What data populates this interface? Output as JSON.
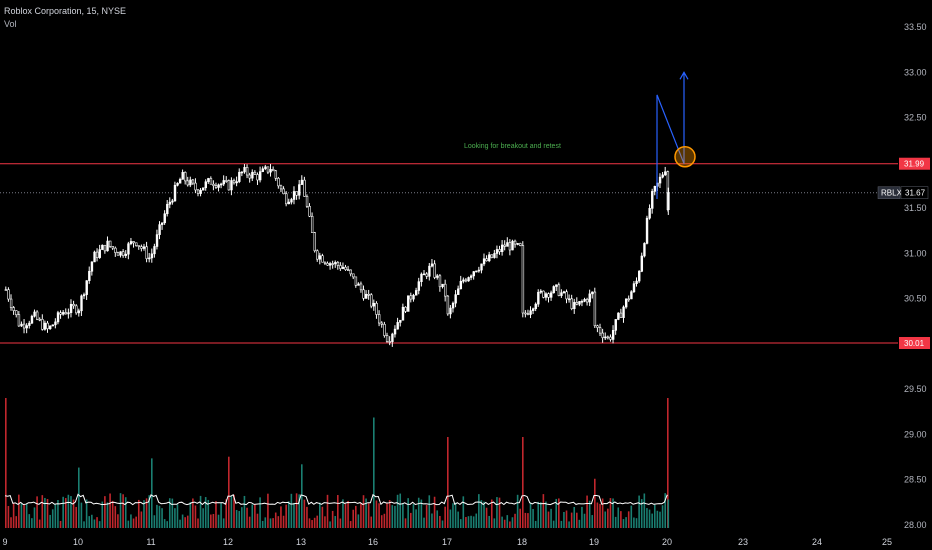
{
  "header": {
    "symbol_line": "Roblox Corporation, 15, NYSE",
    "volume_label": "Vol"
  },
  "colors": {
    "background": "#000000",
    "candle_up": "#ffffff",
    "candle_down": "#ffffff",
    "volume_up": "#1a7f72",
    "volume_down": "#c1272d",
    "volume_ma": "#ffffff",
    "level_line": "#f23645",
    "annotation": "#4caf50",
    "projection": "#2962ff",
    "circle": "#ff9800"
  },
  "annotations": {
    "note": "Looking for breakout and retest",
    "ticker_label": "RBLX",
    "last_price_label": "31.67"
  },
  "chart_data": {
    "type": "candlestick",
    "title": "Roblox Corporation, 15, NYSE",
    "y_ticks": [
      "33.50",
      "33.00",
      "32.50",
      "32.00",
      "31.50",
      "31.00",
      "30.50",
      "30.00",
      "29.50",
      "29.00",
      "28.50",
      "28.00"
    ],
    "x_ticks": [
      "9",
      "10",
      "11",
      "12",
      "13",
      "16",
      "17",
      "18",
      "19",
      "20",
      "23",
      "24",
      "25"
    ],
    "ylim": [
      27.95,
      33.75
    ],
    "levels": [
      {
        "value": 31.99,
        "label": "31.99",
        "style": "solid"
      },
      {
        "value": 30.01,
        "label": "30.01",
        "style": "solid"
      },
      {
        "value": 31.67,
        "label": "31.67",
        "style": "dotted"
      }
    ],
    "projection_path": [
      {
        "date": "20",
        "price": 32.75
      },
      {
        "date": "20",
        "price": 31.99
      },
      {
        "date": "20",
        "price": 33.0
      }
    ],
    "price_path_by_day": [
      {
        "day": "9",
        "points": [
          30.6,
          30.2,
          30.3,
          30.15,
          30.35,
          30.4
        ]
      },
      {
        "day": "10",
        "points": [
          30.4,
          30.95,
          31.1,
          31.0,
          31.15,
          30.95
        ]
      },
      {
        "day": "11",
        "points": [
          31.0,
          31.5,
          31.85,
          31.7,
          31.8,
          31.75
        ]
      },
      {
        "day": "12",
        "points": [
          31.75,
          31.9,
          31.85,
          31.95,
          31.6,
          31.7
        ]
      },
      {
        "day": "13",
        "points": [
          31.8,
          31.0,
          30.9,
          30.85,
          30.65,
          30.45
        ]
      },
      {
        "day": "16",
        "points": [
          30.4,
          30.05,
          30.35,
          30.65,
          30.85,
          30.55
        ]
      },
      {
        "day": "17",
        "points": [
          30.3,
          30.7,
          30.85,
          30.95,
          31.1,
          31.05
        ]
      },
      {
        "day": "18",
        "points": [
          30.3,
          30.55,
          30.6,
          30.4,
          30.55
        ]
      },
      {
        "day": "19",
        "points": [
          30.2,
          30.05,
          30.4,
          30.7,
          31.6,
          31.95
        ]
      },
      {
        "day": "20",
        "points": [
          31.5,
          31.45,
          31.67
        ]
      }
    ],
    "volume_tallest_bars": [
      {
        "day": "9",
        "relative": 1.0
      },
      {
        "day": "16",
        "relative": 0.85
      },
      {
        "day": "17",
        "relative": 0.7
      },
      {
        "day": "18",
        "relative": 0.7
      },
      {
        "day": "20",
        "relative": 1.0
      }
    ]
  }
}
